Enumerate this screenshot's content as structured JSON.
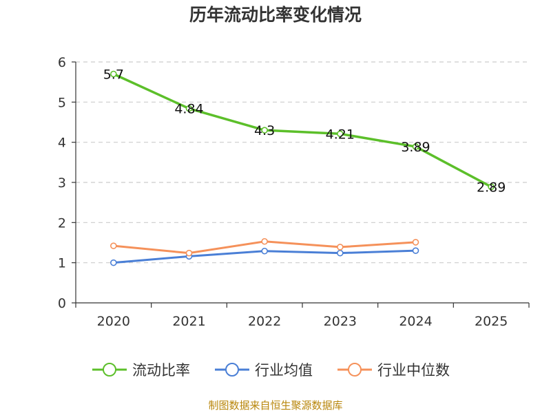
{
  "chart_data": {
    "type": "line",
    "title": "历年流动比率变化情况",
    "categories": [
      "2020",
      "2021",
      "2022",
      "2023",
      "2024",
      "2025"
    ],
    "ylim": [
      0,
      6
    ],
    "yticks": [
      0,
      1,
      2,
      3,
      4,
      5,
      6
    ],
    "grid": true,
    "legend_position": "bottom",
    "xlabel": "",
    "ylabel": "",
    "series": [
      {
        "name": "流动比率",
        "color": "#5cbf2a",
        "values": [
          5.7,
          4.84,
          4.3,
          4.21,
          3.89,
          2.89
        ],
        "labels": [
          "5.7",
          "4.84",
          "4.3",
          "4.21",
          "3.89",
          "2.89"
        ]
      },
      {
        "name": "行业均值",
        "color": "#4a7fd6",
        "values": [
          1.0,
          1.16,
          1.29,
          1.24,
          1.3,
          null
        ]
      },
      {
        "name": "行业中位数",
        "color": "#f5915a",
        "values": [
          1.42,
          1.24,
          1.53,
          1.39,
          1.51,
          null
        ]
      }
    ]
  },
  "footer": "制图数据来自恒生聚源数据库"
}
